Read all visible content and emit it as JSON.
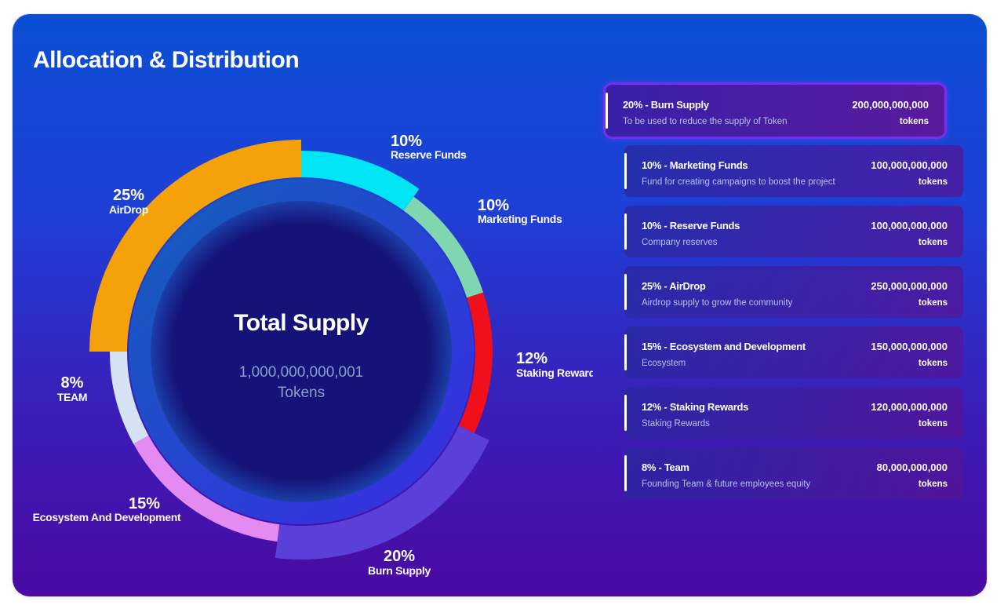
{
  "header": {
    "title": "Allocation & Distribution"
  },
  "center": {
    "title": "Total Supply",
    "amount": "1,000,000,000,001",
    "unit": "Tokens"
  },
  "chart_data": {
    "type": "pie",
    "slices": [
      {
        "label": "Reserve Funds",
        "pct_label": "10%",
        "value": 10,
        "color": "#00e5f5"
      },
      {
        "label": "Marketing Funds",
        "pct_label": "10%",
        "value": 10,
        "color": "#7fd6b0"
      },
      {
        "label": "Staking Rewards",
        "pct_label": "12%",
        "value": 12,
        "color": "#f0101b"
      },
      {
        "label": "Burn Supply",
        "pct_label": "20%",
        "value": 20,
        "color": "#5a40d8"
      },
      {
        "label": "Ecosystem And Development",
        "pct_label": "15%",
        "value": 15,
        "color": "#e58af0"
      },
      {
        "label": "TEAM",
        "pct_label": "8%",
        "value": 8,
        "color": "#d4e2f4"
      },
      {
        "label": "AirDrop",
        "pct_label": "25%",
        "value": 25,
        "color": "#f5a10a"
      }
    ]
  },
  "allocations": [
    {
      "name": "20% - Burn Supply",
      "desc": "To be used to reduce the supply of Token",
      "amount": "200,000,000,000",
      "unit": "tokens"
    },
    {
      "name": "10% - Marketing Funds",
      "desc": "Fund for creating campaigns to boost the project",
      "amount": "100,000,000,000",
      "unit": "tokens"
    },
    {
      "name": "10% - Reserve Funds",
      "desc": "Company reserves",
      "amount": "100,000,000,000",
      "unit": "tokens"
    },
    {
      "name": "25% - AirDrop",
      "desc": "Airdrop supply to grow the community",
      "amount": "250,000,000,000",
      "unit": "tokens"
    },
    {
      "name": "15% - Ecosystem and Development",
      "desc": "Ecosystem",
      "amount": "150,000,000,000",
      "unit": "tokens"
    },
    {
      "name": "12% - Staking Rewards",
      "desc": "Staking Rewards",
      "amount": "120,000,000,000",
      "unit": "tokens"
    },
    {
      "name": "8% - Team",
      "desc": "Founding Team & future employees equity",
      "amount": "80,000,000,000",
      "unit": "tokens"
    }
  ]
}
